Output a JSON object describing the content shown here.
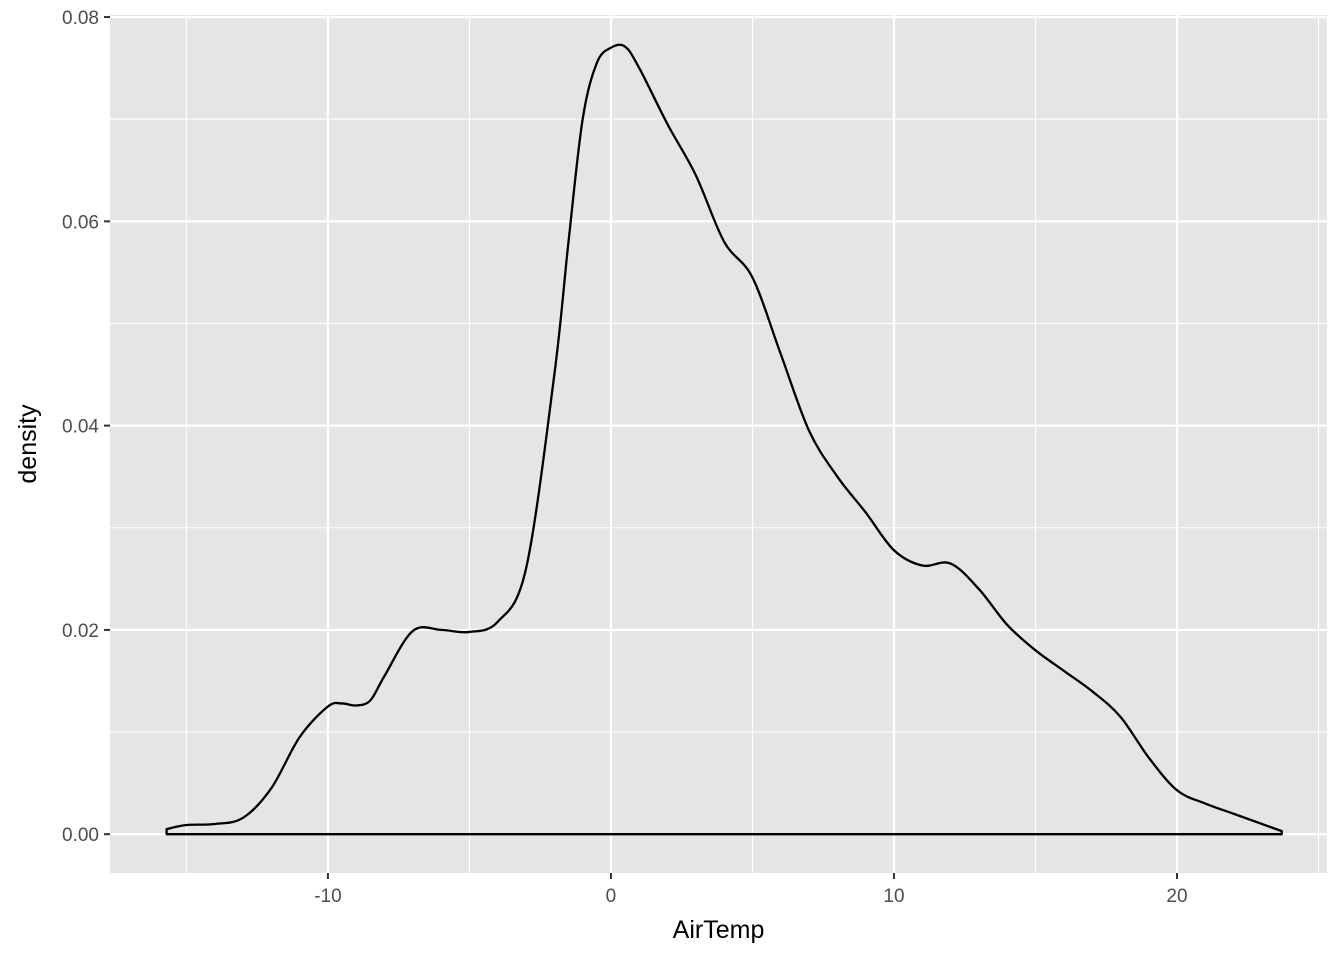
{
  "chart_data": {
    "type": "area",
    "subtype": "density",
    "title": "",
    "xlabel": "AirTemp",
    "ylabel": "density",
    "xlim": [
      -17.7,
      25.3
    ],
    "ylim": [
      -0.0038,
      0.0802
    ],
    "x_ticks": [
      -10,
      0,
      10,
      20
    ],
    "x_tick_labels": [
      "-10",
      "0",
      "10",
      "20"
    ],
    "x_minor_ticks": [
      -15,
      -5,
      5,
      15,
      25
    ],
    "y_ticks": [
      0.0,
      0.02,
      0.04,
      0.06,
      0.08
    ],
    "y_tick_labels": [
      "0.00",
      "0.02",
      "0.04",
      "0.06",
      "0.08"
    ],
    "y_minor_ticks": [
      0.01,
      0.03,
      0.05,
      0.07
    ],
    "grid": true,
    "legend": "none",
    "colors": {
      "panel_background": "#e5e5e5",
      "grid": "#ffffff",
      "line": "#000000",
      "fill": "none",
      "tick_text": "#4d4d4d"
    },
    "series": [
      {
        "x": [
          -15.7,
          -15.0,
          -14.0,
          -13.0,
          -12.0,
          -11.0,
          -10.0,
          -9.5,
          -9.0,
          -8.5,
          -8.0,
          -7.0,
          -6.0,
          -5.0,
          -4.0,
          -3.0,
          -2.0,
          -1.5,
          -1.0,
          -0.5,
          0.0,
          0.5,
          1.0,
          2.0,
          3.0,
          4.0,
          5.0,
          6.0,
          7.0,
          8.0,
          9.0,
          10.0,
          11.0,
          12.0,
          13.0,
          14.0,
          15.0,
          16.0,
          17.0,
          18.0,
          19.0,
          20.0,
          21.0,
          22.0,
          23.0,
          23.7
        ],
        "y": [
          0.0005,
          0.0009,
          0.001,
          0.0016,
          0.0045,
          0.0095,
          0.0125,
          0.0128,
          0.0126,
          0.0131,
          0.0155,
          0.0199,
          0.02,
          0.0198,
          0.0208,
          0.026,
          0.045,
          0.058,
          0.07,
          0.0755,
          0.077,
          0.0771,
          0.075,
          0.0695,
          0.0645,
          0.058,
          0.0545,
          0.047,
          0.0395,
          0.035,
          0.0315,
          0.0278,
          0.0263,
          0.0265,
          0.024,
          0.0205,
          0.018,
          0.016,
          0.014,
          0.0115,
          0.0075,
          0.0043,
          0.003,
          0.002,
          0.001,
          0.0003
        ]
      }
    ]
  }
}
